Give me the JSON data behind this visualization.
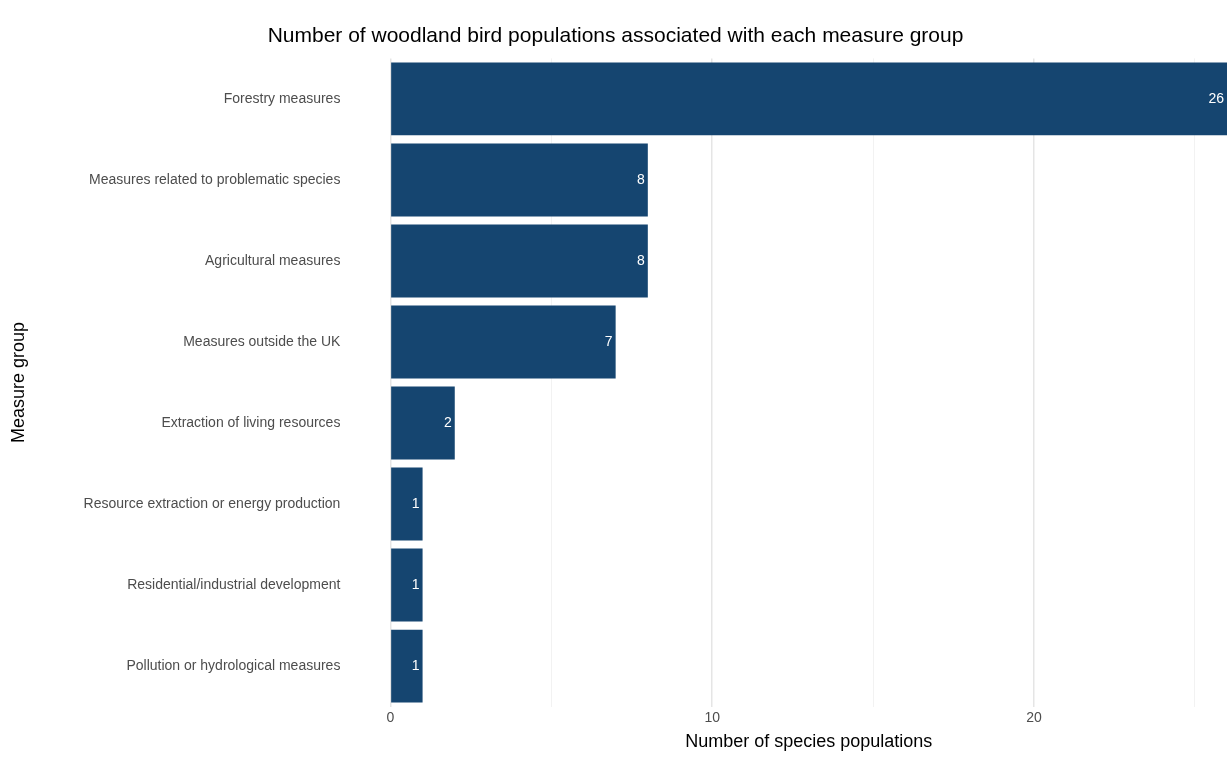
{
  "chart_data": {
    "type": "bar",
    "orientation": "horizontal",
    "title": "Number of woodland bird populations associated with each measure group",
    "xlabel": "Number of species populations",
    "ylabel": "Measure group",
    "categories": [
      "Forestry measures",
      "Measures related to problematic species",
      "Agricultural measures",
      "Measures outside the UK",
      "Extraction of living resources",
      "Resource extraction or energy production",
      "Residential/industrial development",
      "Pollution or hydrological measures"
    ],
    "values": [
      26,
      8,
      8,
      7,
      2,
      1,
      1,
      1
    ],
    "color": "#154570",
    "xlim": [
      0,
      26
    ],
    "xticks": [
      0,
      {
        "value": 5,
        "label": null
      },
      10,
      {
        "value": 15,
        "label": null
      },
      20,
      {
        "value": 25,
        "label": null
      }
    ],
    "grid": "x",
    "legend": false,
    "data_labels": true
  }
}
